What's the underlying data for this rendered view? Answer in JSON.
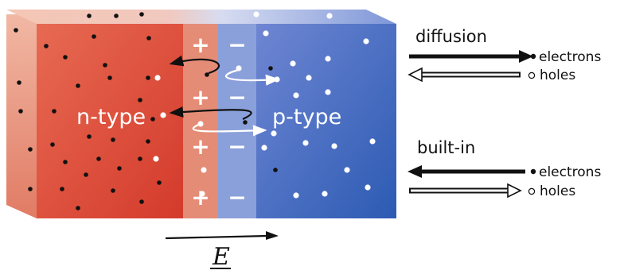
{
  "diagram": {
    "n_region_label": "n-type",
    "p_region_label": "p-type",
    "depletion_plus_signs": [
      "+",
      "+",
      "+",
      "+"
    ],
    "depletion_minus_signs": [
      "−",
      "−",
      "−",
      "−"
    ],
    "legend": {
      "diffusion": {
        "heading": "diffusion",
        "electrons_label": "electrons",
        "holes_label": "holes",
        "electron_arrow_direction": "right",
        "hole_arrow_direction": "left"
      },
      "built_in": {
        "heading": "built-in",
        "electrons_label": "electrons",
        "holes_label": "holes",
        "electron_arrow_direction": "left",
        "hole_arrow_direction": "right"
      }
    },
    "field_label": "E",
    "field_arrow_direction": "right",
    "colors": {
      "n_region": "#e0533f",
      "n_region_dark": "#d23a2c",
      "p_region": "#5673c9",
      "p_region_dark": "#2f5cb4",
      "depletion_n": "#e68f79",
      "depletion_p": "#8ea2db",
      "electron": "#111111",
      "hole": "#ffffff"
    }
  }
}
